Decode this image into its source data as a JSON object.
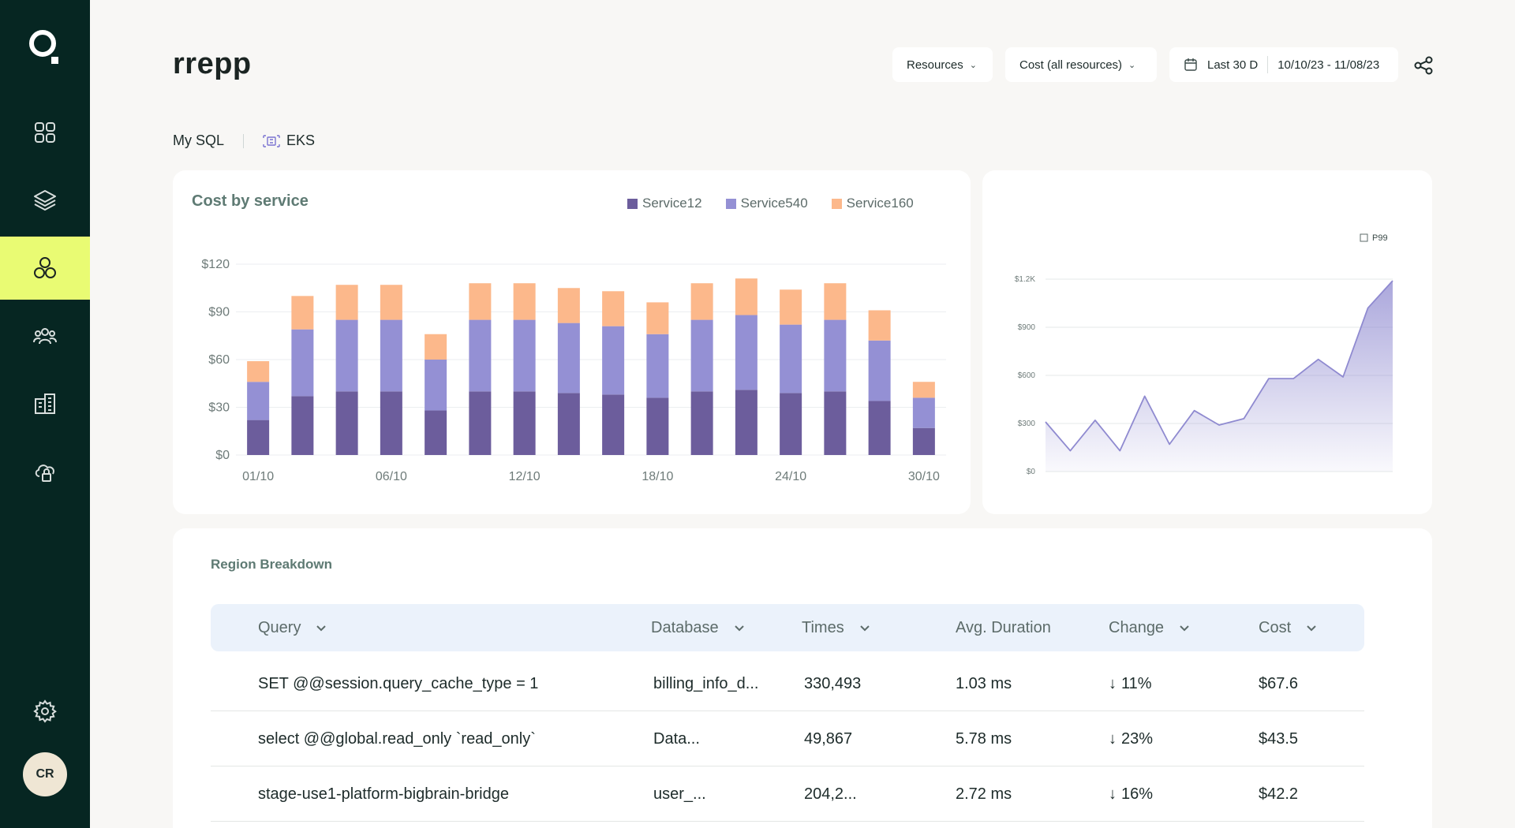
{
  "sidebar": {
    "nav": [
      {
        "icon": "dashboard-grid-icon"
      },
      {
        "icon": "layers-icon"
      },
      {
        "icon": "services-circles-icon",
        "active": true
      },
      {
        "icon": "team-icon"
      },
      {
        "icon": "buildings-icon"
      },
      {
        "icon": "cloud-lock-icon"
      }
    ],
    "settings_icon": "gear-icon",
    "avatar_initials": "CR"
  },
  "header": {
    "title": "rrepp",
    "resources_label": "Resources",
    "cost_label": "Cost (all resources)",
    "range_label": "Last 30 D",
    "date_range": "10/10/23 - 11/08/23"
  },
  "breadcrumb": {
    "first": "My SQL",
    "second": "EKS"
  },
  "colors": {
    "sidebar_bg": "#062622",
    "active_nav": "#e9fb73",
    "service12": "#6c5d9c",
    "service540": "#9490d4",
    "service160": "#fcb88b",
    "line_stroke": "#8f8ad0"
  },
  "chart_data": [
    {
      "type": "bar",
      "stacked": true,
      "title": "Cost by service",
      "x_tick_labels": [
        "01/10",
        "06/10",
        "12/10",
        "18/10",
        "24/10",
        "30/10"
      ],
      "y_tick_labels": [
        "$0",
        "$30",
        "$60",
        "$90",
        "$120"
      ],
      "ylim": [
        0,
        120
      ],
      "grid": true,
      "legend_position": "top-right",
      "series": [
        {
          "name": "Service12",
          "color": "#6c5d9c",
          "values": [
            22,
            37,
            40,
            40,
            28,
            40,
            40,
            39,
            38,
            36,
            40,
            41,
            39,
            40,
            34,
            17
          ]
        },
        {
          "name": "Service540",
          "color": "#9490d4",
          "values": [
            24,
            42,
            45,
            45,
            32,
            45,
            45,
            44,
            43,
            40,
            45,
            47,
            43,
            45,
            38,
            19
          ]
        },
        {
          "name": "Service160",
          "color": "#fcb88b",
          "values": [
            13,
            21,
            22,
            22,
            16,
            23,
            23,
            22,
            22,
            20,
            23,
            23,
            22,
            23,
            19,
            10
          ]
        }
      ]
    },
    {
      "type": "area",
      "legend_label": "P99",
      "y_tick_labels": [
        "$0",
        "$300",
        "$600",
        "$900",
        "$1.2K"
      ],
      "ylim": [
        0,
        1200
      ],
      "grid": true,
      "legend_position": "top-right",
      "values": [
        310,
        130,
        320,
        130,
        470,
        170,
        380,
        290,
        330,
        580,
        580,
        700,
        590,
        1020,
        1190
      ]
    }
  ],
  "table": {
    "title": "Region Breakdown",
    "columns": [
      "Query",
      "Database",
      "Times",
      "Avg. Duration",
      "Change",
      "Cost"
    ],
    "rows": [
      {
        "query": "SET @@session.query_cache_type = 1",
        "database": "billing_info_d...",
        "times": "330,493",
        "duration": "1.03 ms",
        "change": "11%",
        "cost": "$67.6"
      },
      {
        "query": "select @@global.read_only `read_only`",
        "database": "Data...",
        "times": "49,867",
        "duration": "5.78 ms",
        "change": "23%",
        "cost": "$43.5"
      },
      {
        "query": "stage-use1-platform-bigbrain-bridge",
        "database": "user_...",
        "times": "204,2...",
        "duration": "2.72 ms",
        "change": "16%",
        "cost": "$42.2"
      }
    ]
  }
}
